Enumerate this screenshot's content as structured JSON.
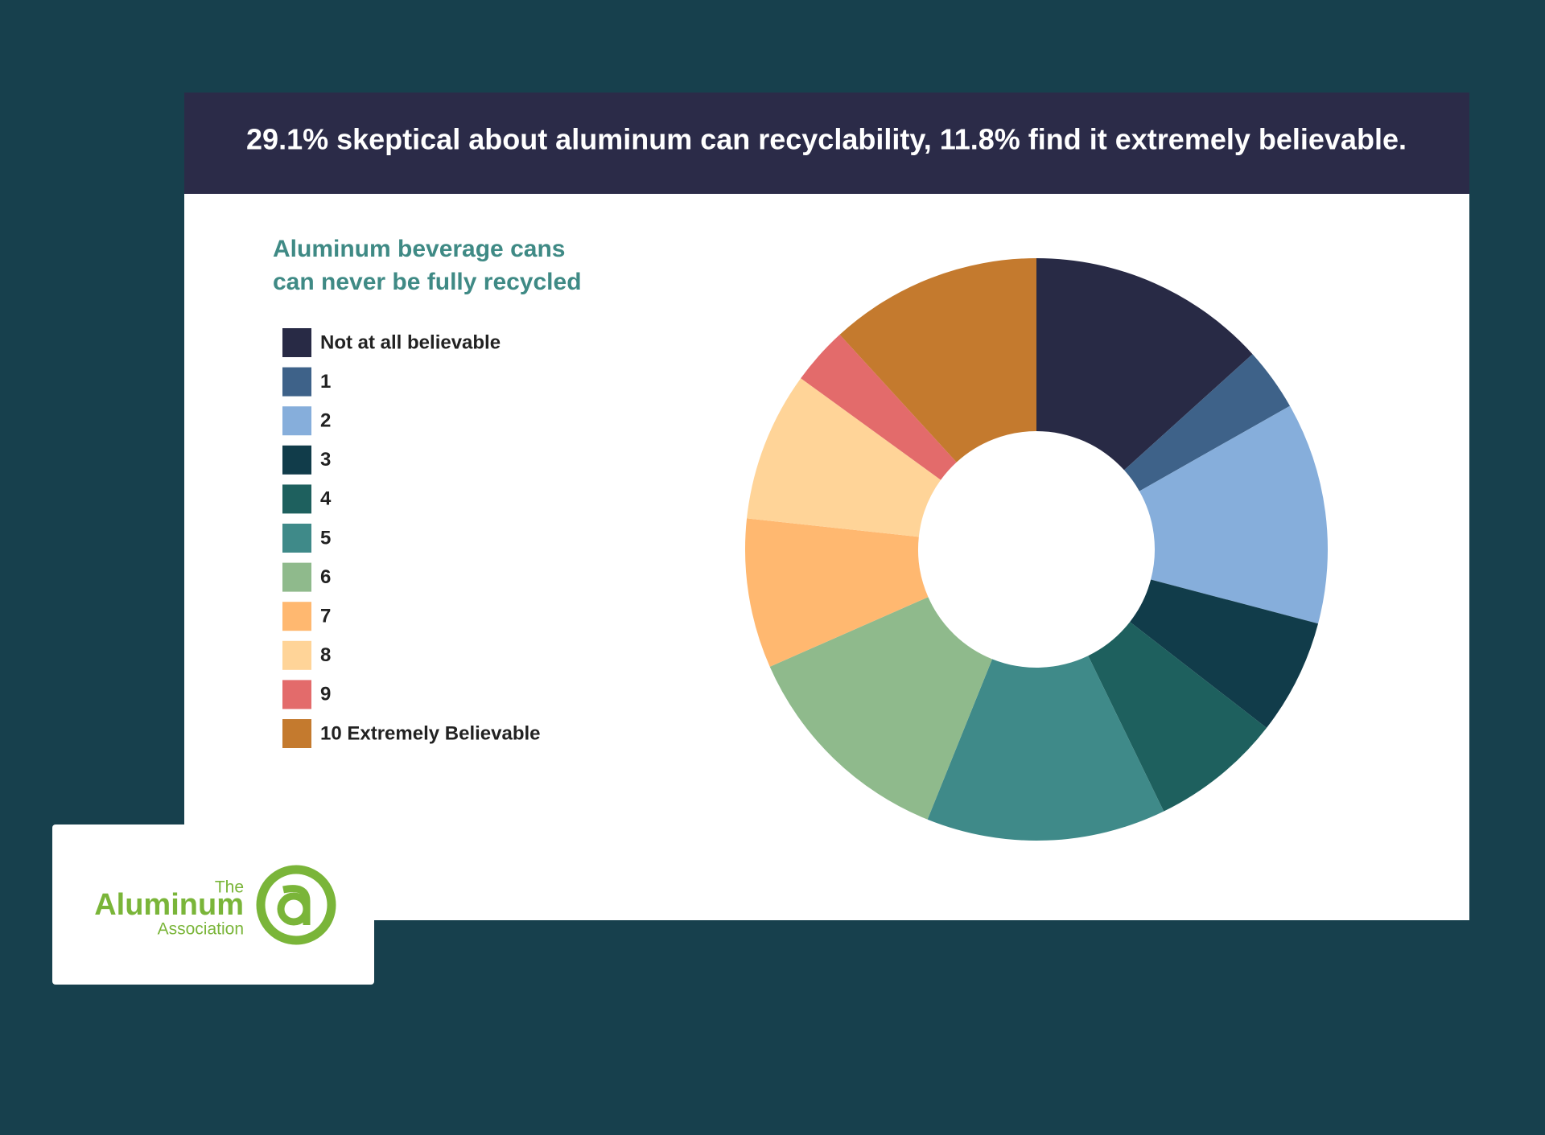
{
  "chart_data": {
    "type": "donut",
    "title": "29.1% skeptical about aluminum can recyclability, 11.8% find it extremely believable.",
    "subtitle": [
      "Aluminum beverage cans",
      "can never be fully recycled"
    ],
    "categories": [
      "Not at all believable",
      "1",
      "2",
      "3",
      "4",
      "5",
      "6",
      "7",
      "8",
      "9",
      "10 Extremely Believable"
    ],
    "values": [
      13.3,
      3.5,
      12.3,
      6.4,
      7.3,
      13.3,
      12.3,
      8.3,
      8.3,
      3.2,
      11.8
    ],
    "colors": [
      "#282a45",
      "#3e6289",
      "#86aedb",
      "#113c4a",
      "#1e605e",
      "#3f8a89",
      "#8fba8c",
      "#ffb870",
      "#ffd498",
      "#e36b6b",
      "#c47a2e"
    ]
  },
  "logo": {
    "the": "The",
    "name": "Aluminum",
    "association": "Association"
  }
}
